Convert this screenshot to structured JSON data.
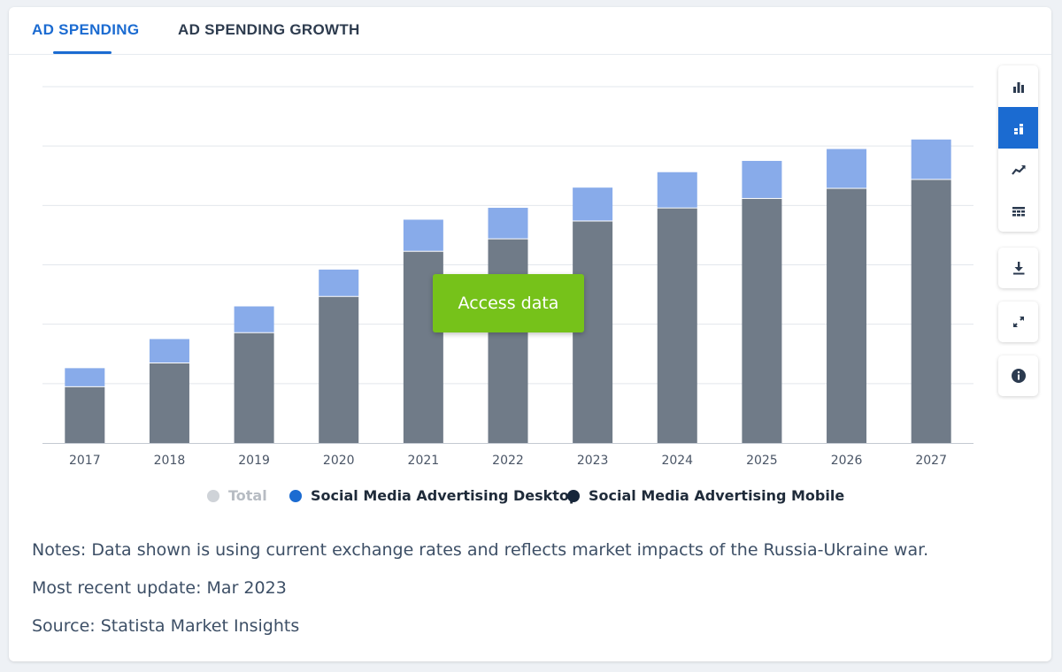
{
  "tabs": [
    "AD SPENDING",
    "AD SPENDING GROWTH"
  ],
  "access_button": "Access data",
  "toolbar_icons": [
    "bar-chart-icon",
    "stacked-bar-icon",
    "line-chart-icon",
    "table-icon",
    "download-icon",
    "expand-icon",
    "info-icon"
  ],
  "colors": {
    "accent": "#1b6bd1",
    "desktop": "#88abea",
    "mobile": "#707b88",
    "button": "#76c21a"
  },
  "chart_data": {
    "type": "bar",
    "stacked": true,
    "categories": [
      "2017",
      "2018",
      "2019",
      "2020",
      "2021",
      "2022",
      "2023",
      "2024",
      "2025",
      "2026",
      "2027"
    ],
    "series": [
      {
        "name": "Social Media Advertising Mobile",
        "values": [
          9.4,
          13.4,
          18.5,
          24.6,
          32.2,
          34.3,
          37.3,
          39.5,
          41.1,
          42.8,
          44.3
        ]
      },
      {
        "name": "Social Media Advertising Desktop",
        "values": [
          3.2,
          4.1,
          4.5,
          4.6,
          5.4,
          5.3,
          5.7,
          6.1,
          6.4,
          6.7,
          6.8
        ]
      }
    ],
    "ylim": [
      0,
      60
    ],
    "grid": true,
    "legend_position": "bottom-center",
    "legend": [
      {
        "label": "Total",
        "color": "#cfd3d8",
        "text_color": "#b7bcc3",
        "inactive": true
      },
      {
        "label": "Social Media Advertising Desktop",
        "color": "#1b6bd1",
        "text_color": "#1f2b3a"
      },
      {
        "label": "Social Media Advertising Mobile",
        "color": "#16263a",
        "text_color": "#1f2b3a"
      }
    ]
  },
  "notes": [
    "Notes: Data shown is using current exchange rates and reflects market impacts of the Russia-Ukraine war.",
    "Most recent update: Mar 2023",
    "Source: Statista Market Insights"
  ]
}
